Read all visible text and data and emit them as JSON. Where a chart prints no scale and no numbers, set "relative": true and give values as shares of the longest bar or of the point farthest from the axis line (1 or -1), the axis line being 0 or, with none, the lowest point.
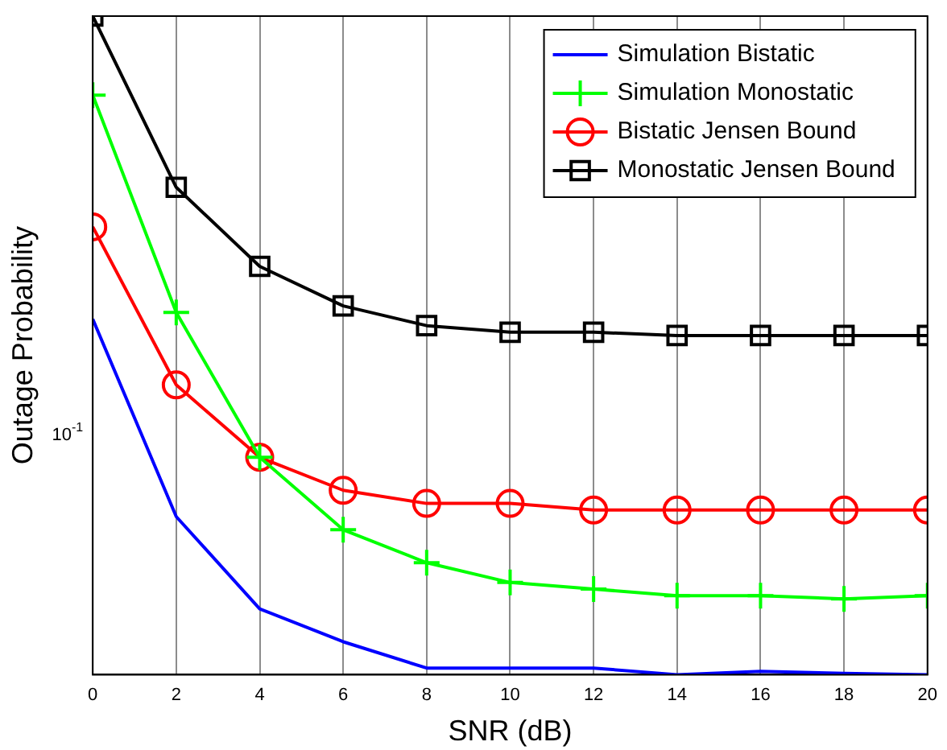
{
  "chart_data": {
    "type": "line",
    "xlabel": "SNR (dB)",
    "ylabel": "Outage Probability",
    "relative": true,
    "log": false,
    "x": [
      0,
      2,
      4,
      6,
      8,
      10,
      12,
      14,
      16,
      18,
      20
    ],
    "xlim": [
      0,
      20
    ],
    "xticks": [
      0,
      2,
      4,
      6,
      8,
      10,
      12,
      14,
      16,
      18,
      20
    ],
    "annotations": [
      "10$^{-1}$"
    ],
    "grid": "x",
    "legend": "top right",
    "line_style": "solid",
    "series": [
      {
        "name": "Simulation Bistatic",
        "color": "#0000ff",
        "marker": "none",
        "values": [
          0.54,
          0.24,
          0.1,
          0.05,
          0.01,
          0.01,
          0.01,
          0,
          0.005,
          0.002,
          0
        ]
      },
      {
        "name": "Simulation Monostatic",
        "color": "#00ff00",
        "marker": "cross",
        "values": [
          0.88,
          0.55,
          0.33,
          0.22,
          0.17,
          0.14,
          0.13,
          0.12,
          0.12,
          0.115,
          0.12
        ]
      },
      {
        "name": "Bistatic Jensen Bound",
        "color": "#ff0000",
        "marker": "circle",
        "values": [
          0.68,
          0.44,
          0.33,
          0.28,
          0.26,
          0.26,
          0.25,
          0.25,
          0.25,
          0.25,
          0.25
        ]
      },
      {
        "name": "Monostatic Jensen Bound",
        "color": "#000000",
        "marker": "square",
        "values": [
          1,
          0.74,
          0.62,
          0.56,
          0.53,
          0.52,
          0.52,
          0.515,
          0.515,
          0.515,
          0.515
        ]
      }
    ]
  }
}
